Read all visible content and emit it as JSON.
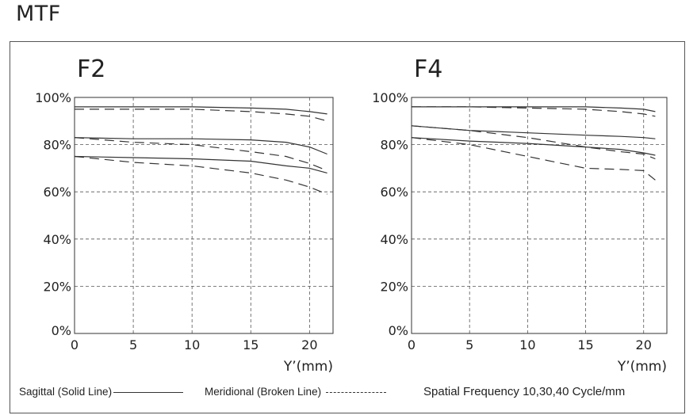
{
  "page": {
    "title": "MTF"
  },
  "legend": {
    "sagittal": "Sagittal (Solid Line)",
    "meridional": "Meridional (Broken Line)",
    "frequency": "Spatial Frequency 10,30,40 Cycle/mm"
  },
  "chart_data": [
    {
      "type": "line",
      "title": "F2",
      "xlabel": "Y’(mm)",
      "ylabel": "",
      "xlim": [
        0,
        22
      ],
      "ylim": [
        0,
        100
      ],
      "xticks": [
        "0",
        "5",
        "10",
        "15",
        "20"
      ],
      "yticks": [
        "0%",
        "20%",
        "40%",
        "60%",
        "80%",
        "100%"
      ],
      "grid": true,
      "series": [
        {
          "style": "solid",
          "x": [
            0,
            5,
            10,
            15,
            18,
            20,
            21.5
          ],
          "values": [
            96,
            96,
            96,
            95.5,
            95,
            94,
            93
          ]
        },
        {
          "style": "dashed",
          "x": [
            0,
            5,
            10,
            15,
            18,
            20,
            21.5
          ],
          "values": [
            95,
            95,
            95,
            94,
            93,
            92,
            90
          ]
        },
        {
          "style": "solid",
          "x": [
            0,
            5,
            10,
            15,
            18,
            20,
            21.5
          ],
          "values": [
            83,
            82.5,
            82.5,
            82,
            81,
            79,
            76
          ]
        },
        {
          "style": "dashed",
          "x": [
            0,
            5,
            10,
            15,
            18,
            20,
            21.5
          ],
          "values": [
            83,
            81,
            80,
            77,
            75,
            72,
            69
          ]
        },
        {
          "style": "solid",
          "x": [
            0,
            5,
            10,
            15,
            18,
            20,
            21.5
          ],
          "values": [
            75,
            74.5,
            74,
            73,
            71,
            70,
            68
          ]
        },
        {
          "style": "dashed",
          "x": [
            0,
            5,
            10,
            15,
            18,
            20,
            21.5
          ],
          "values": [
            75,
            72.5,
            71,
            68,
            65,
            62,
            59
          ]
        }
      ]
    },
    {
      "type": "line",
      "title": "F4",
      "xlabel": "Y’(mm)",
      "ylabel": "",
      "xlim": [
        0,
        22
      ],
      "ylim": [
        0,
        100
      ],
      "xticks": [
        "0",
        "5",
        "10",
        "15",
        "20"
      ],
      "yticks": [
        "0%",
        "20%",
        "40%",
        "60%",
        "80%",
        "100%"
      ],
      "grid": true,
      "series": [
        {
          "style": "solid",
          "x": [
            0,
            5,
            10,
            15,
            18,
            20,
            21
          ],
          "values": [
            96,
            96,
            96,
            96,
            95.5,
            95,
            94
          ]
        },
        {
          "style": "dashed",
          "x": [
            0,
            5,
            10,
            15,
            18,
            20,
            21
          ],
          "values": [
            96,
            96,
            95.5,
            95,
            94,
            93,
            92
          ]
        },
        {
          "style": "solid",
          "x": [
            0,
            5,
            10,
            15,
            18,
            20,
            21
          ],
          "values": [
            88,
            86,
            85,
            84,
            83.5,
            83,
            82.5
          ]
        },
        {
          "style": "dashed",
          "x": [
            0,
            5,
            10,
            15,
            18,
            20,
            21
          ],
          "values": [
            88,
            86,
            83,
            79,
            77,
            76,
            74
          ]
        },
        {
          "style": "solid",
          "x": [
            0,
            5,
            10,
            15,
            18,
            20,
            21
          ],
          "values": [
            83,
            81.5,
            80.5,
            79,
            78,
            76.5,
            75.5
          ]
        },
        {
          "style": "dashed",
          "x": [
            0,
            5,
            10,
            15,
            18,
            20,
            21
          ],
          "values": [
            83,
            80,
            75,
            70,
            69.5,
            69,
            65
          ]
        }
      ]
    }
  ]
}
